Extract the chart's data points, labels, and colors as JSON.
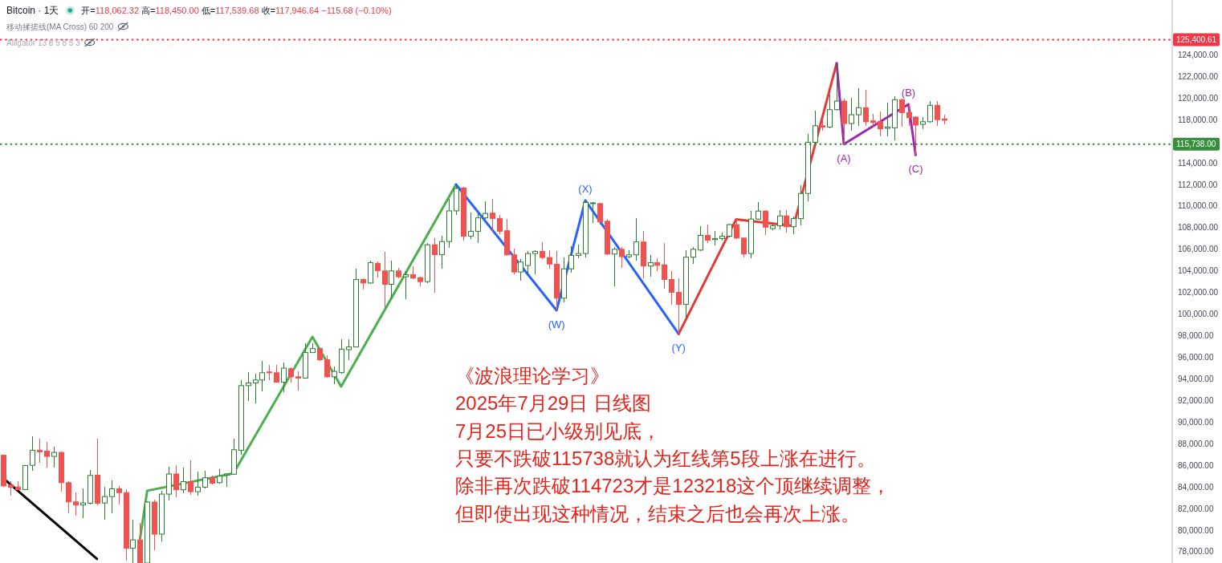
{
  "chart_data": {
    "type": "candlestick",
    "title": "Bitcoin · 1天",
    "subtitle": "开=118,062.32 高=118,450.00 低=117,539.68 收=117,946.64 −115.68 (−0.10%)",
    "categories": [
      null,
      null,
      null,
      null,
      null,
      null,
      null,
      null,
      null,
      null,
      null,
      null,
      null,
      null,
      null,
      null,
      null,
      null,
      null,
      null,
      null,
      null,
      null,
      null,
      null,
      null,
      null,
      null,
      null,
      null,
      null,
      null,
      null,
      null,
      null,
      null,
      null,
      null,
      null,
      null,
      null,
      null,
      null,
      null,
      null,
      null,
      null,
      null,
      null,
      null,
      null,
      null,
      null,
      null,
      null,
      null,
      null,
      null,
      null,
      null,
      null,
      null,
      null,
      null,
      null,
      null,
      null,
      null,
      null,
      null,
      null,
      null,
      null,
      null,
      null,
      null,
      null,
      null,
      null,
      null,
      null,
      null,
      null,
      null,
      null,
      null,
      null,
      null,
      null,
      null,
      null,
      null,
      null,
      null,
      null,
      null,
      null,
      null,
      null,
      null,
      null,
      null,
      null,
      null,
      null,
      null,
      null,
      null,
      null,
      null,
      null,
      null,
      null,
      null,
      null,
      null,
      null,
      null,
      null,
      null,
      null,
      null,
      null,
      null,
      null,
      null,
      null,
      null,
      null,
      null,
      null,
      null,
      null,
      null,
      null,
      null,
      null,
      null,
      null,
      null,
      null,
      null,
      null,
      null,
      null,
      null,
      null,
      null,
      null,
      null,
      null,
      null,
      null,
      null,
      null,
      null,
      null,
      null,
      null,
      null,
      null,
      null,
      null
    ],
    "ohlc": [
      [
        86930,
        87000,
        84000,
        84100
      ],
      [
        84180,
        84500,
        83200,
        83960
      ],
      [
        84000,
        84500,
        83700,
        83750
      ],
      [
        83760,
        86050,
        83700,
        85990
      ],
      [
        86000,
        88700,
        85500,
        87400
      ],
      [
        87400,
        88450,
        86250,
        87250
      ],
      [
        87320,
        88180,
        85790,
        86830
      ],
      [
        86830,
        87700,
        85760,
        87200
      ],
      [
        87200,
        87300,
        83580,
        84400
      ],
      [
        84400,
        84500,
        81530,
        82620
      ],
      [
        82620,
        83460,
        81360,
        82330
      ],
      [
        82330,
        83870,
        81110,
        82520
      ],
      [
        82500,
        85560,
        82380,
        85070
      ],
      [
        85090,
        88480,
        82280,
        82500
      ],
      [
        82520,
        83980,
        81000,
        83110
      ],
      [
        83110,
        84640,
        81530,
        83830
      ],
      [
        83830,
        84120,
        82380,
        83480
      ],
      [
        83480,
        83780,
        77210,
        78330
      ],
      [
        78330,
        81000,
        76960,
        79100
      ],
      [
        79100,
        80640,
        76960,
        76960
      ],
      [
        76960,
        82700,
        76960,
        82600
      ],
      [
        82600,
        82830,
        78140,
        79630
      ],
      [
        79630,
        83650,
        78950,
        83340
      ],
      [
        83340,
        85880,
        82780,
        85200
      ],
      [
        85200,
        86000,
        83030,
        83740
      ],
      [
        83740,
        85760,
        83410,
        84500
      ],
      [
        84500,
        86500,
        83280,
        83560
      ],
      [
        83560,
        85410,
        83160,
        83980
      ],
      [
        83980,
        85500,
        83900,
        84850
      ],
      [
        84850,
        85070,
        84250,
        84350
      ],
      [
        84400,
        85630,
        84300,
        85000
      ],
      [
        85100,
        85300,
        83980,
        85200
      ],
      [
        85180,
        88450,
        85100,
        87450
      ],
      [
        87400,
        93880,
        86990,
        93380
      ],
      [
        93380,
        94600,
        91950,
        93630
      ],
      [
        93630,
        94450,
        91700,
        93900
      ],
      [
        93900,
        95660,
        92860,
        94570
      ],
      [
        94650,
        95290,
        93900,
        94570
      ],
      [
        94570,
        95290,
        93630,
        93700
      ],
      [
        93700,
        95540,
        92810,
        95000
      ],
      [
        94950,
        95050,
        93700,
        94200
      ],
      [
        94200,
        94700,
        92950,
        94080
      ],
      [
        94080,
        97340,
        94000,
        96440
      ],
      [
        96440,
        97340,
        96390,
        96810
      ],
      [
        96810,
        96940,
        95700,
        95770
      ],
      [
        95770,
        96200,
        94120,
        94200
      ],
      [
        94200,
        95170,
        93500,
        94700
      ],
      [
        94600,
        97640,
        94500,
        96760
      ],
      [
        96710,
        97690,
        95770,
        96960
      ],
      [
        96960,
        104190,
        96900,
        103210
      ],
      [
        103210,
        103300,
        102290,
        102880
      ],
      [
        102880,
        104940,
        102800,
        104760
      ],
      [
        104700,
        104870,
        103380,
        104030
      ],
      [
        104000,
        105760,
        100610,
        102760
      ],
      [
        102760,
        104940,
        101480,
        104000
      ],
      [
        104000,
        104250,
        103340,
        103460
      ],
      [
        103460,
        103960,
        101360,
        103650
      ],
      [
        103650,
        104450,
        103210,
        103340
      ],
      [
        103380,
        103500,
        102580,
        103010
      ],
      [
        103010,
        106550,
        102900,
        106420
      ],
      [
        106420,
        107040,
        101960,
        105510
      ],
      [
        105510,
        107220,
        104190,
        106720
      ],
      [
        106720,
        110700,
        106130,
        109560
      ],
      [
        109560,
        111930,
        109150,
        111630
      ],
      [
        111680,
        111750,
        106800,
        107220
      ],
      [
        107220,
        109400,
        106940,
        107670
      ],
      [
        107670,
        109400,
        106550,
        108910
      ],
      [
        108910,
        110440,
        108800,
        109320
      ],
      [
        109350,
        110640,
        107620,
        108860
      ],
      [
        108860,
        109200,
        107380,
        107670
      ],
      [
        107720,
        108780,
        105390,
        105490
      ],
      [
        105490,
        106050,
        103710,
        103900
      ],
      [
        103900,
        105070,
        103080,
        104820
      ],
      [
        104500,
        105810,
        103710,
        105610
      ],
      [
        105610,
        105930,
        103660,
        105810
      ],
      [
        105810,
        106680,
        105100,
        105240
      ],
      [
        105240,
        105930,
        104190,
        104640
      ],
      [
        104620,
        105810,
        100350,
        101480
      ],
      [
        101480,
        105240,
        101110,
        104190
      ],
      [
        104190,
        106310,
        103830,
        105440
      ],
      [
        105440,
        106420,
        105190,
        105610
      ],
      [
        105610,
        110530,
        105270,
        110340
      ],
      [
        110250,
        110400,
        108410,
        110300
      ],
      [
        110230,
        110330,
        108290,
        108540
      ],
      [
        108600,
        108800,
        105500,
        105560
      ],
      [
        105560,
        106200,
        102580,
        106000
      ],
      [
        106000,
        106180,
        104270,
        105320
      ],
      [
        105320,
        105930,
        105190,
        105490
      ],
      [
        105490,
        108860,
        104940,
        106680
      ],
      [
        106680,
        107670,
        103340,
        104450
      ],
      [
        104450,
        105440,
        103460,
        104760
      ],
      [
        104760,
        105190,
        103960,
        104510
      ],
      [
        104570,
        106550,
        102340,
        103210
      ],
      [
        103210,
        103960,
        100860,
        102020
      ],
      [
        102020,
        103340,
        98170,
        100900
      ],
      [
        100900,
        105930,
        99600,
        105270
      ],
      [
        105270,
        106180,
        104620,
        106000
      ],
      [
        105930,
        108110,
        105860,
        107290
      ],
      [
        107290,
        108290,
        106550,
        106840
      ],
      [
        106900,
        107670,
        106350,
        107000
      ],
      [
        107000,
        107540,
        106840,
        107220
      ],
      [
        107220,
        108400,
        107100,
        108290
      ],
      [
        108290,
        108800,
        106940,
        107040
      ],
      [
        107040,
        107100,
        105270,
        105560
      ],
      [
        105610,
        109590,
        105190,
        108800
      ],
      [
        108800,
        110400,
        108700,
        109540
      ],
      [
        109540,
        109660,
        107290,
        108050
      ],
      [
        107920,
        108300,
        107790,
        108170
      ],
      [
        108170,
        109660,
        107840,
        109090
      ],
      [
        109090,
        109660,
        107540,
        108090
      ],
      [
        108090,
        109030,
        107420,
        108840
      ],
      [
        108840,
        111920,
        108240,
        111170
      ],
      [
        111170,
        116700,
        110460,
        115910
      ],
      [
        115910,
        118810,
        115760,
        117440
      ],
      [
        117440,
        117940,
        117000,
        117320
      ],
      [
        117320,
        120300,
        117200,
        118930
      ],
      [
        118930,
        123218,
        118800,
        119720
      ],
      [
        119720,
        119920,
        115738,
        117640
      ],
      [
        117640,
        120050,
        117000,
        118460
      ],
      [
        118460,
        120910,
        117390,
        119110
      ],
      [
        119110,
        120790,
        117440,
        117810
      ],
      [
        117890,
        118550,
        117320,
        117740
      ],
      [
        117810,
        118730,
        116440,
        117150
      ],
      [
        117200,
        119590,
        116440,
        117320
      ],
      [
        117250,
        120150,
        116090,
        119850
      ],
      [
        119850,
        119960,
        117320,
        118660
      ],
      [
        118660,
        119430,
        117440,
        118180
      ],
      [
        118240,
        118300,
        114723,
        117500
      ],
      [
        117570,
        118240,
        117150,
        117810
      ],
      [
        117810,
        119720,
        117700,
        119330
      ],
      [
        119330,
        119720,
        117440,
        118000
      ],
      [
        118062.32,
        118450,
        117539.68,
        117946.64
      ],
      null,
      null,
      null,
      null,
      null,
      null,
      null,
      null,
      null,
      null,
      null,
      null,
      null,
      null,
      null,
      null,
      null,
      null,
      null,
      null,
      null,
      null,
      null,
      null,
      null,
      null,
      null,
      null,
      null,
      null,
      null
    ],
    "colors": [
      "#ef5350",
      "#ef5350",
      "#ef5350",
      "#2e7d32",
      "#2e7d32",
      "#ef5350",
      "#ef5350",
      "#2e7d32",
      "#ef5350",
      "#ef5350",
      "#ef5350",
      "#2e7d32",
      "#2e7d32",
      "#ef5350",
      "#2e7d32",
      "#2e7d32",
      "#ef5350",
      "#ef5350",
      "#2e7d32",
      "#ef5350",
      "#2e7d32",
      "#ef5350",
      "#2e7d32",
      "#2e7d32",
      "#ef5350",
      "#2e7d32",
      "#ef5350",
      "#2e7d32",
      "#2e7d32",
      "#ef5350",
      "#2e7d32",
      "#2e7d32",
      "#2e7d32",
      "#2e7d32",
      "#2e7d32",
      "#2e7d32",
      "#2e7d32",
      "#ef5350",
      "#ef5350",
      "#2e7d32",
      "#ef5350",
      "#ef5350",
      "#2e7d32",
      "#2e7d32",
      "#ef5350",
      "#ef5350",
      "#2e7d32",
      "#2e7d32",
      "#2e7d32",
      "#2e7d32",
      "#ef5350",
      "#2e7d32",
      "#ef5350",
      "#ef5350",
      "#2e7d32",
      "#ef5350",
      "#2e7d32",
      "#ef5350",
      "#ef5350",
      "#2e7d32",
      "#ef5350",
      "#2e7d32",
      "#2e7d32",
      "#2e7d32",
      "#ef5350",
      "#2e7d32",
      "#2e7d32",
      "#2e7d32",
      "#ef5350",
      "#ef5350",
      "#ef5350",
      "#ef5350",
      "#2e7d32",
      "#2e7d32",
      "#2e7d32",
      "#ef5350",
      "#ef5350",
      "#ef5350",
      "#2e7d32",
      "#2e7d32",
      "#2e7d32",
      "#2e7d32",
      "#2e7d32",
      "#ef5350",
      "#ef5350",
      "#2e7d32",
      "#ef5350",
      "#2e7d32",
      "#2e7d32",
      "#ef5350",
      "#2e7d32",
      "#ef5350",
      "#ef5350",
      "#ef5350",
      "#ef5350",
      "#2e7d32",
      "#2e7d32",
      "#2e7d32",
      "#ef5350",
      "#2e7d32",
      "#2e7d32",
      "#2e7d32",
      "#ef5350",
      "#ef5350",
      "#2e7d32",
      "#2e7d32",
      "#ef5350",
      "#2e7d32",
      "#2e7d32",
      "#ef5350",
      "#2e7d32",
      "#2e7d32",
      "#2e7d32",
      "#2e7d32",
      "#ef5350",
      "#2e7d32",
      "#2e7d32",
      "#ef5350",
      "#2e7d32",
      "#2e7d32",
      "#ef5350",
      "#ef5350",
      "#ef5350",
      "#2e7d32",
      "#2e7d32",
      "#ef5350",
      "#ef5350",
      "#ef5350",
      "#2e7d32",
      "#2e7d32",
      "#ef5350",
      "#ef5350",
      null,
      null,
      null,
      null,
      null,
      null,
      null,
      null,
      null,
      null,
      null,
      null,
      null,
      null,
      null,
      null,
      null,
      null,
      null,
      null,
      null,
      null,
      null,
      null,
      null,
      null,
      null,
      null,
      null,
      null,
      null
    ],
    "series": [
      {
        "type": "line",
        "color": "#000000",
        "values": [
          84780,
          null,
          null,
          null,
          null,
          null,
          null,
          null,
          null,
          null,
          null,
          null,
          null,
          77340,
          null,
          null,
          null,
          null,
          null,
          null,
          null,
          null,
          null,
          null,
          null,
          null,
          null,
          null,
          null,
          null,
          null,
          null,
          null,
          null,
          null,
          null,
          null,
          null,
          null,
          null,
          null,
          null,
          null,
          null,
          null,
          null,
          null,
          null,
          null,
          null,
          null,
          null,
          null,
          null,
          null,
          null,
          null,
          null,
          null,
          null,
          null,
          null,
          null,
          null,
          null,
          null,
          null,
          null,
          null,
          null,
          null,
          null,
          null,
          null,
          null,
          null,
          null,
          null,
          null,
          null,
          null,
          null,
          null,
          null,
          null,
          null,
          null,
          null,
          null,
          null,
          null,
          null,
          null,
          null,
          null,
          null,
          null,
          null,
          null,
          null,
          null,
          null,
          null,
          null,
          null,
          null,
          null,
          null,
          null,
          null,
          null,
          null,
          null,
          null,
          null,
          null,
          null,
          null,
          null,
          null,
          null,
          null,
          null,
          null,
          null,
          null,
          null,
          null,
          null,
          null,
          null,
          null,
          null,
          null,
          null,
          null,
          null,
          null,
          null,
          null,
          null,
          null,
          null,
          null,
          null,
          null,
          null,
          null,
          null,
          null,
          null,
          null,
          null,
          null,
          null,
          null,
          null,
          null,
          null,
          null,
          null,
          null,
          null
        ]
      },
      {
        "type": "line",
        "color": "#4caf50",
        "values": [
          null,
          null,
          null,
          null,
          null,
          null,
          null,
          null,
          null,
          null,
          null,
          null,
          null,
          null,
          null,
          null,
          null,
          null,
          null,
          79220,
          83650,
          null,
          null,
          null,
          null,
          null,
          null,
          null,
          null,
          null,
          null,
          null,
          85250,
          null,
          null,
          null,
          null,
          null,
          null,
          null,
          null,
          null,
          null,
          97890,
          null,
          null,
          null,
          93300,
          null,
          null,
          null,
          null,
          null,
          null,
          null,
          null,
          null,
          null,
          null,
          null,
          null,
          null,
          null,
          112000,
          null,
          null,
          null,
          null,
          null,
          null,
          null,
          null,
          null,
          null,
          null,
          null,
          null,
          null,
          null,
          null,
          null,
          null,
          null,
          null,
          null,
          null,
          null,
          null,
          null,
          null,
          null,
          null,
          null,
          null,
          null,
          null,
          null,
          null,
          null,
          null,
          null,
          null,
          null,
          null,
          null,
          null,
          null,
          null,
          null,
          null,
          null,
          null,
          null,
          null,
          null,
          null,
          null,
          null,
          null,
          null,
          null,
          null,
          null,
          null,
          null,
          null,
          null,
          null,
          null,
          null,
          null,
          null,
          null,
          null,
          null,
          null,
          null,
          null,
          null,
          null,
          null,
          null,
          null,
          null,
          null,
          null,
          null,
          null,
          null,
          null,
          null,
          null,
          null,
          null,
          null,
          null,
          null,
          null,
          null,
          null,
          null,
          null,
          null
        ]
      },
      {
        "type": "line",
        "color": "#2962ff",
        "values": [
          null,
          null,
          null,
          null,
          null,
          null,
          null,
          null,
          null,
          null,
          null,
          null,
          null,
          null,
          null,
          null,
          null,
          null,
          null,
          null,
          null,
          null,
          null,
          null,
          null,
          null,
          null,
          null,
          null,
          null,
          null,
          null,
          null,
          null,
          null,
          null,
          null,
          null,
          null,
          null,
          null,
          null,
          null,
          null,
          null,
          null,
          null,
          null,
          null,
          null,
          null,
          null,
          null,
          null,
          null,
          null,
          null,
          null,
          null,
          null,
          null,
          null,
          null,
          112000,
          null,
          null,
          null,
          null,
          null,
          null,
          null,
          null,
          null,
          null,
          null,
          null,
          null,
          100350,
          null,
          null,
          null,
          110530,
          null,
          null,
          null,
          null,
          null,
          null,
          null,
          null,
          null,
          null,
          null,
          null,
          98170,
          null,
          null,
          null,
          null,
          null,
          null,
          null,
          null,
          null,
          null,
          null,
          null,
          null,
          null,
          null,
          null,
          null,
          null,
          null,
          null,
          null,
          null,
          null,
          null,
          null,
          null,
          null,
          null,
          null,
          null,
          null,
          null,
          null,
          null,
          null,
          null,
          null,
          null,
          null,
          null,
          null,
          null,
          null,
          null,
          null,
          null,
          null,
          null,
          null,
          null,
          null,
          null,
          null,
          null,
          null,
          null,
          null,
          null,
          null,
          null,
          null,
          null,
          null,
          null,
          null,
          null,
          null,
          null
        ],
        "value_labels": [
          null,
          null,
          null,
          null,
          null,
          null,
          null,
          null,
          null,
          null,
          null,
          null,
          null,
          null,
          null,
          null,
          null,
          null,
          null,
          null,
          null,
          null,
          null,
          null,
          null,
          null,
          null,
          null,
          null,
          null,
          null,
          null,
          null,
          null,
          null,
          null,
          null,
          null,
          null,
          null,
          null,
          null,
          null,
          null,
          null,
          null,
          null,
          null,
          null,
          null,
          null,
          null,
          null,
          null,
          null,
          null,
          null,
          null,
          null,
          null,
          null,
          null,
          null,
          null,
          null,
          null,
          null,
          null,
          null,
          null,
          null,
          null,
          null,
          null,
          null,
          null,
          null,
          "(W)",
          null,
          null,
          null,
          "(X)",
          null,
          null,
          null,
          null,
          null,
          null,
          null,
          null,
          null,
          null,
          null,
          null,
          "(Y)",
          null,
          null,
          null,
          null,
          null,
          null,
          null,
          null,
          null,
          null,
          null,
          null,
          null,
          null,
          null,
          null,
          null,
          null,
          null,
          null,
          null,
          null,
          null,
          null,
          null,
          null,
          null,
          null,
          null,
          null,
          null,
          null,
          null,
          null,
          null,
          null,
          null,
          null,
          null,
          null,
          null,
          null,
          null,
          null,
          null,
          null,
          null,
          null,
          null,
          null,
          null,
          null,
          null,
          null,
          null,
          null,
          null,
          null,
          null,
          null,
          null,
          null,
          null,
          null,
          null,
          null,
          null,
          null
        ]
      },
      {
        "type": "line",
        "color": "#e53935",
        "values": [
          null,
          null,
          null,
          null,
          null,
          null,
          null,
          null,
          null,
          null,
          null,
          null,
          null,
          null,
          null,
          null,
          null,
          null,
          null,
          null,
          null,
          null,
          null,
          null,
          null,
          null,
          null,
          null,
          null,
          null,
          null,
          null,
          null,
          null,
          null,
          null,
          null,
          null,
          null,
          null,
          null,
          null,
          null,
          null,
          null,
          null,
          null,
          null,
          null,
          null,
          null,
          null,
          null,
          null,
          null,
          null,
          null,
          null,
          null,
          null,
          null,
          null,
          null,
          null,
          null,
          null,
          null,
          null,
          null,
          null,
          null,
          null,
          null,
          null,
          null,
          null,
          null,
          null,
          null,
          null,
          null,
          null,
          null,
          null,
          null,
          null,
          null,
          null,
          null,
          null,
          null,
          null,
          null,
          null,
          98170,
          null,
          null,
          null,
          null,
          null,
          null,
          null,
          108780,
          null,
          null,
          null,
          null,
          null,
          null,
          null,
          108160,
          null,
          null,
          null,
          null,
          null,
          123218,
          null,
          null,
          null,
          null,
          null,
          null,
          null,
          null,
          null,
          null,
          null,
          null,
          null,
          null,
          null,
          null,
          null,
          null,
          null,
          null,
          null,
          null,
          null,
          null,
          null,
          null,
          null,
          null,
          null,
          null,
          null,
          null,
          null,
          null,
          null,
          null,
          null,
          null,
          null,
          null,
          null,
          null,
          null,
          null,
          null,
          null
        ]
      },
      {
        "type": "line",
        "color": "#9c27b0",
        "values": [
          null,
          null,
          null,
          null,
          null,
          null,
          null,
          null,
          null,
          null,
          null,
          null,
          null,
          null,
          null,
          null,
          null,
          null,
          null,
          null,
          null,
          null,
          null,
          null,
          null,
          null,
          null,
          null,
          null,
          null,
          null,
          null,
          null,
          null,
          null,
          null,
          null,
          null,
          null,
          null,
          null,
          null,
          null,
          null,
          null,
          null,
          null,
          null,
          null,
          null,
          null,
          null,
          null,
          null,
          null,
          null,
          null,
          null,
          null,
          null,
          null,
          null,
          null,
          null,
          null,
          null,
          null,
          null,
          null,
          null,
          null,
          null,
          null,
          null,
          null,
          null,
          null,
          null,
          null,
          null,
          null,
          null,
          null,
          null,
          null,
          null,
          null,
          null,
          null,
          null,
          null,
          null,
          null,
          null,
          null,
          null,
          null,
          null,
          null,
          null,
          null,
          null,
          null,
          null,
          null,
          null,
          null,
          null,
          null,
          null,
          null,
          null,
          null,
          null,
          null,
          null,
          123218,
          115738,
          null,
          null,
          null,
          null,
          null,
          null,
          null,
          null,
          119430,
          114723,
          null,
          null,
          null,
          null,
          null,
          null,
          null,
          null,
          null,
          null,
          null,
          null,
          null,
          null,
          null,
          null,
          null,
          null,
          null,
          null,
          null,
          null,
          null,
          null,
          null,
          null,
          null,
          null,
          null,
          null,
          null,
          null,
          null,
          null,
          null
        ],
        "value_labels": [
          null,
          null,
          null,
          null,
          null,
          null,
          null,
          null,
          null,
          null,
          null,
          null,
          null,
          null,
          null,
          null,
          null,
          null,
          null,
          null,
          null,
          null,
          null,
          null,
          null,
          null,
          null,
          null,
          null,
          null,
          null,
          null,
          null,
          null,
          null,
          null,
          null,
          null,
          null,
          null,
          null,
          null,
          null,
          null,
          null,
          null,
          null,
          null,
          null,
          null,
          null,
          null,
          null,
          null,
          null,
          null,
          null,
          null,
          null,
          null,
          null,
          null,
          null,
          null,
          null,
          null,
          null,
          null,
          null,
          null,
          null,
          null,
          null,
          null,
          null,
          null,
          null,
          null,
          null,
          null,
          null,
          null,
          null,
          null,
          null,
          null,
          null,
          null,
          null,
          null,
          null,
          null,
          null,
          null,
          null,
          null,
          null,
          null,
          null,
          null,
          null,
          null,
          null,
          null,
          null,
          null,
          null,
          null,
          null,
          null,
          null,
          null,
          null,
          null,
          null,
          null,
          null,
          "(A)",
          null,
          null,
          null,
          null,
          null,
          null,
          null,
          null,
          "(B)",
          "(C)",
          null,
          null,
          null,
          null,
          null,
          null,
          null,
          null,
          null,
          null,
          null,
          null,
          null,
          null,
          null,
          null,
          null,
          null,
          null,
          null,
          null,
          null,
          null,
          null,
          null,
          null,
          null,
          null,
          null,
          null,
          null,
          null,
          null,
          null,
          null
        ]
      }
    ],
    "ylim": [
      76960,
      129080
    ],
    "yticks": [
      {
        "value": 78000,
        "label": "78,000.00"
      },
      {
        "value": 80000,
        "label": "80,000.00"
      },
      {
        "value": 82000,
        "label": "82,000.00"
      },
      {
        "value": 84000,
        "label": "84,000.00"
      },
      {
        "value": 86000,
        "label": "86,000.00"
      },
      {
        "value": 88000,
        "label": "88,000.00"
      },
      {
        "value": 90000,
        "label": "90,000.00"
      },
      {
        "value": 92000,
        "label": "92,000.00"
      },
      {
        "value": 94000,
        "label": "94,000.00"
      },
      {
        "value": 96000,
        "label": "96,000.00"
      },
      {
        "value": 98000,
        "label": "98,000.00"
      },
      {
        "value": 100000,
        "label": "100,000.00"
      },
      {
        "value": 102000,
        "label": "102,000.00"
      },
      {
        "value": 104000,
        "label": "104,000.00"
      },
      {
        "value": 106000,
        "label": "106,000.00"
      },
      {
        "value": 108000,
        "label": "108,000.00"
      },
      {
        "value": 110000,
        "label": "110,000.00"
      },
      {
        "value": 112000,
        "label": "112,000.00"
      },
      {
        "value": 114000,
        "label": "114,000.00"
      },
      {
        "value": 118000,
        "label": "118,000.00"
      },
      {
        "value": 120000,
        "label": "120,000.00"
      },
      {
        "value": 122000,
        "label": "122,000.00"
      },
      {
        "value": 124000,
        "label": "124,000.00"
      }
    ],
    "tick_labels": "y",
    "ref_lines": [
      {
        "axis": "y",
        "value": 125400.61,
        "label": "125,400.61",
        "color": "#f23645",
        "line_style": "dotted"
      },
      {
        "axis": "y",
        "value": 115738,
        "label": "115,738.00",
        "color": "#388e3c",
        "line_style": "dotted"
      }
    ],
    "annotations": [
      "移动揉搓线(MA Cross) 60 200",
      "Alligator 13 8 5 8 5 3",
      "《波浪理论学习》",
      "2025年7月29日 日线图",
      "7月25日已小级别见底，",
      "只要不跌破115738就认为红线第5段上涨在进行。",
      "除非再次跌破114723才是123218这个顶继续调整，",
      "但即使出现这种情况，结束之后也会再次上涨。"
    ]
  }
}
